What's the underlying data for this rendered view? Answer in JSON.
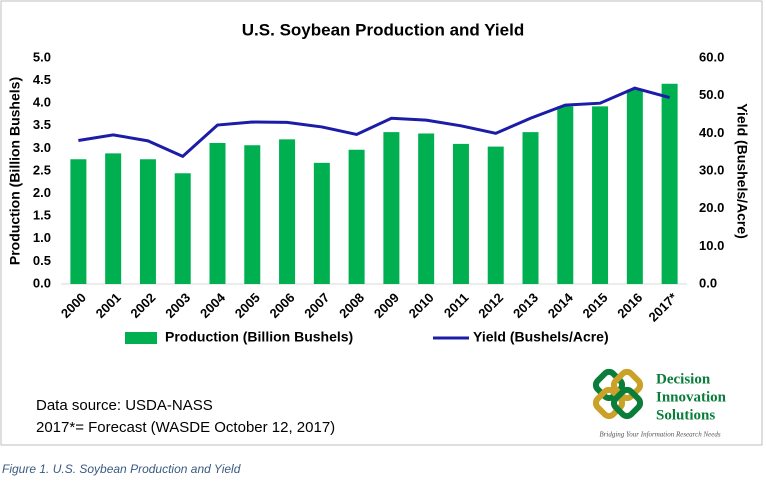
{
  "chart_data": {
    "type": "bar-line",
    "title": "U.S. Soybean Production and Yield",
    "y_label": "Production (Billion Bushels)",
    "y2_label": "Yield (Bushels/Acre)",
    "categories": [
      "2000",
      "2001",
      "2002",
      "2003",
      "2004",
      "2005",
      "2006",
      "2007",
      "2008",
      "2009",
      "2010",
      "2011",
      "2012",
      "2013",
      "2014",
      "2015",
      "2016",
      "2017*"
    ],
    "series": [
      {
        "name": "Production (Billion Bushels)",
        "type": "bar",
        "color": "#00b050",
        "values": [
          2.76,
          2.89,
          2.76,
          2.45,
          3.12,
          3.07,
          3.2,
          2.68,
          2.97,
          3.36,
          3.33,
          3.1,
          3.04,
          3.36,
          3.93,
          3.93,
          4.3,
          4.43
        ]
      },
      {
        "name": "Yield (Bushels/Acre)",
        "type": "line",
        "axis": "y2",
        "color": "#1c1ca8",
        "values": [
          38.1,
          39.6,
          38.0,
          33.9,
          42.2,
          43.0,
          42.9,
          41.7,
          39.7,
          44.0,
          43.5,
          42.0,
          40.0,
          44.0,
          47.5,
          48.0,
          52.0,
          49.5
        ]
      }
    ],
    "ylim": [
      0,
      5
    ],
    "yticks": [
      {
        "value": 0,
        "label": "0.0"
      },
      {
        "value": 0.5,
        "label": "0.5"
      },
      {
        "value": 1,
        "label": "1.0"
      },
      {
        "value": 1.5,
        "label": "1.5"
      },
      {
        "value": 2,
        "label": "2.0"
      },
      {
        "value": 2.5,
        "label": "2.5"
      },
      {
        "value": 3,
        "label": "3.0"
      },
      {
        "value": 3.5,
        "label": "3.5"
      },
      {
        "value": 4,
        "label": "4.0"
      },
      {
        "value": 4.5,
        "label": "4.5"
      },
      {
        "value": 5,
        "label": "5.0"
      }
    ],
    "y2lim": [
      0,
      60
    ],
    "y2ticks": [
      {
        "value": 0,
        "label": "0.0"
      },
      {
        "value": 10,
        "label": "10.0"
      },
      {
        "value": 20,
        "label": "20.0"
      },
      {
        "value": 30,
        "label": "30.0"
      },
      {
        "value": 40,
        "label": "40.0"
      },
      {
        "value": 50,
        "label": "50.0"
      },
      {
        "value": 60,
        "label": "60.0"
      }
    ],
    "grid": false,
    "legend": "bottom"
  },
  "notes": [
    "Data source: USDA-NASS",
    "2017*= Forecast (WASDE  October 12, 2017)"
  ],
  "logo": {
    "lines": [
      "Decision",
      "Innovation",
      "Solutions"
    ],
    "tagline": "Bridging Your Information Research Needs"
  },
  "caption": "Figure 1. U.S. Soybean Production and Yield"
}
